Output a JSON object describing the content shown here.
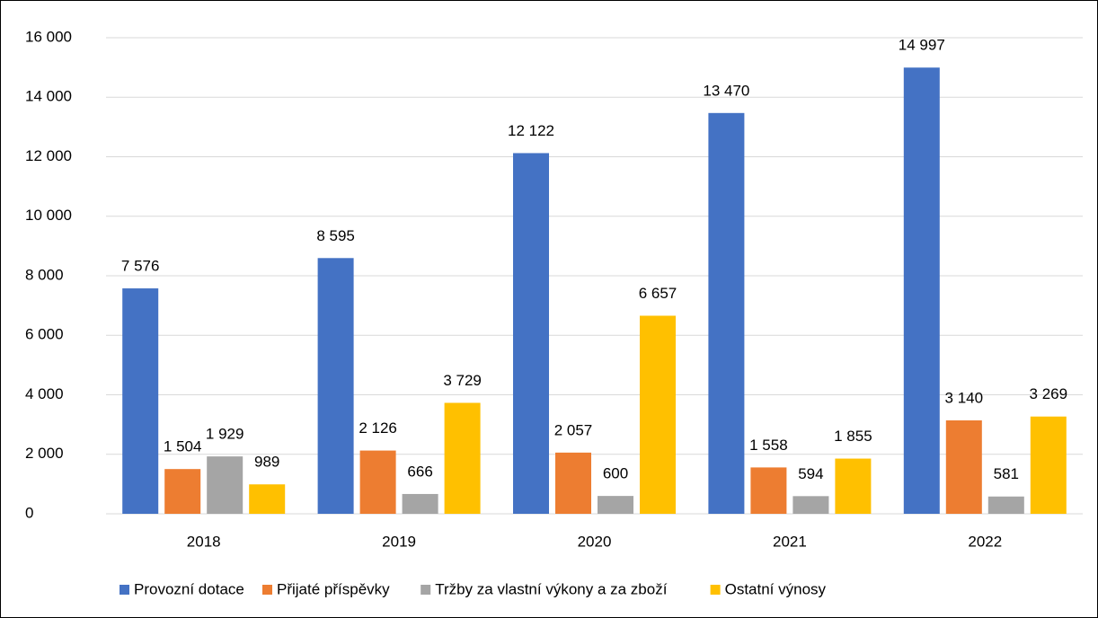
{
  "chart_data": {
    "type": "bar",
    "categories": [
      "2018",
      "2019",
      "2020",
      "2021",
      "2022"
    ],
    "series": [
      {
        "name": "Provozní dotace",
        "color": "#4472c4",
        "values": [
          7576,
          8595,
          12122,
          13470,
          14997
        ],
        "value_labels": [
          "7 576",
          "8 595",
          "12 122",
          "13 470",
          "14 997"
        ]
      },
      {
        "name": "Přijaté příspěvky",
        "color": "#ed7d31",
        "values": [
          1504,
          2126,
          2057,
          1558,
          3140
        ],
        "value_labels": [
          "1 504",
          "2 126",
          "2 057",
          "1 558",
          "3 140"
        ]
      },
      {
        "name": "Tržby za vlastní výkony a za zboží",
        "color": "#a5a5a5",
        "values": [
          1929,
          666,
          600,
          594,
          581
        ],
        "value_labels": [
          "1 929",
          "666",
          "600",
          "594",
          "581"
        ]
      },
      {
        "name": "Ostatní výnosy",
        "color": "#ffc000",
        "values": [
          989,
          3729,
          6657,
          1855,
          3269
        ],
        "value_labels": [
          "989",
          "3 729",
          "6 657",
          "1 855",
          "3 269"
        ]
      }
    ],
    "ylim": [
      0,
      16000
    ],
    "yticks": [
      0,
      {
        "value": 2000,
        "label": "2 000"
      },
      {
        "value": 4000,
        "label": "4 000"
      },
      {
        "value": 6000,
        "label": "6 000"
      },
      {
        "value": 8000,
        "label": "8 000"
      },
      {
        "value": 10000,
        "label": "10 000"
      },
      {
        "value": 12000,
        "label": "12 000"
      },
      {
        "value": 14000,
        "label": "14 000"
      },
      {
        "value": 16000,
        "label": "16 000"
      }
    ],
    "grid": true,
    "legend": "bottom"
  }
}
